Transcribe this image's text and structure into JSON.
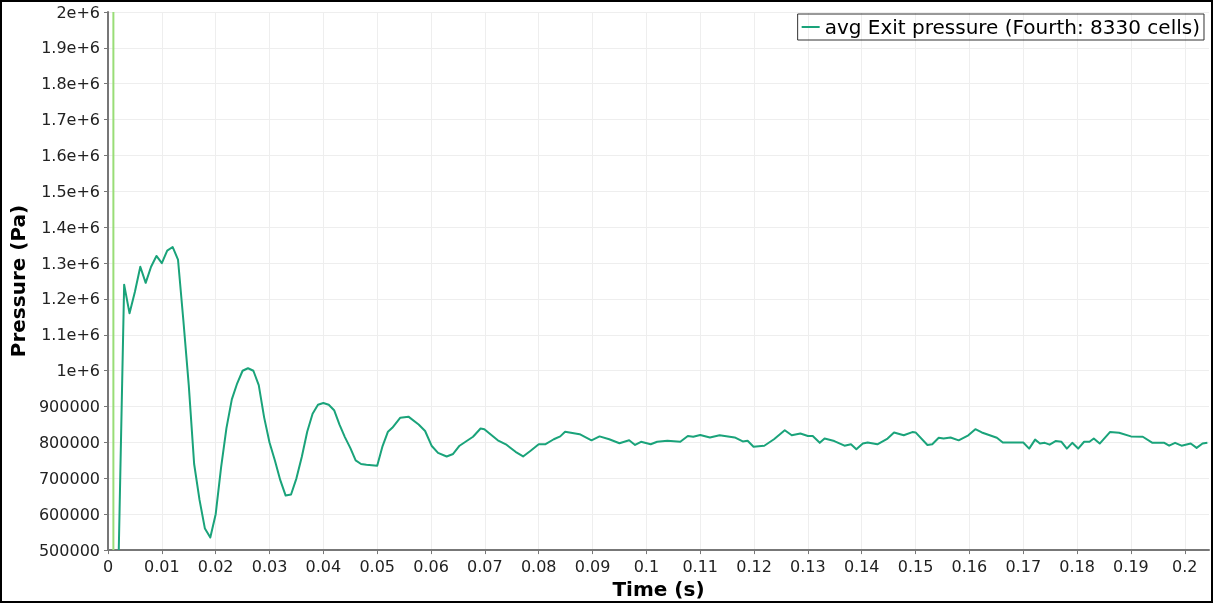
{
  "chart_data": {
    "type": "line",
    "xlabel": "Time (s)",
    "ylabel": "Pressure (Pa)",
    "xlim": [
      0,
      0.2045
    ],
    "ylim": [
      500000,
      2000000
    ],
    "xticks": [
      0,
      0.01,
      0.02,
      0.03,
      0.04,
      0.05,
      0.06,
      0.07,
      0.08,
      0.09,
      0.1,
      0.11,
      0.12,
      0.13,
      0.14,
      0.15,
      0.16,
      0.17,
      0.18,
      0.19,
      0.2
    ],
    "yticks": [
      500000,
      600000,
      700000,
      800000,
      900000,
      {
        "value": 1000000,
        "label": "1e+6"
      },
      {
        "value": 1100000,
        "label": "1.1e+6"
      },
      {
        "value": 1200000,
        "label": "1.2e+6"
      },
      {
        "value": 1300000,
        "label": "1.3e+6"
      },
      {
        "value": 1400000,
        "label": "1.4e+6"
      },
      {
        "value": 1500000,
        "label": "1.5e+6"
      },
      {
        "value": 1600000,
        "label": "1.6e+6"
      },
      {
        "value": 1700000,
        "label": "1.7e+6"
      },
      {
        "value": 1800000,
        "label": "1.8e+6"
      },
      {
        "value": 1900000,
        "label": "1.9e+6"
      },
      {
        "value": 2000000,
        "label": "2e+6"
      }
    ],
    "grid": true,
    "legend": "top right",
    "marker": "none",
    "line_style": "solid",
    "series": [
      {
        "name": "avg Exit pressure (Fourth: 8330 cells)",
        "color": "#1aa37a",
        "x": [
          0.002,
          0.003,
          0.004,
          0.005,
          0.006,
          0.007,
          0.008,
          0.009,
          0.01,
          0.011,
          0.012,
          0.013,
          0.014,
          0.015,
          0.016,
          0.017,
          0.018,
          0.019,
          0.02,
          0.021,
          0.022,
          0.023,
          0.024,
          0.025,
          0.026,
          0.027,
          0.028,
          0.029,
          0.03,
          0.031,
          0.032,
          0.033,
          0.034,
          0.035,
          0.036,
          0.037,
          0.038,
          0.039,
          0.04,
          0.041,
          0.042,
          0.043,
          0.044,
          0.045,
          0.046,
          0.047,
          0.048,
          0.05,
          0.051,
          0.052,
          0.0528,
          0.0543,
          0.0558,
          0.0577,
          0.0589,
          0.0601,
          0.0613,
          0.0629,
          0.0641,
          0.0653,
          0.0678,
          0.0692,
          0.0699,
          0.0724,
          0.0739,
          0.0757,
          0.0771,
          0.0785,
          0.08,
          0.0812,
          0.0828,
          0.084,
          0.0849,
          0.0876,
          0.0898,
          0.0913,
          0.0931,
          0.095,
          0.0968,
          0.0979,
          0.099,
          0.1008,
          0.102,
          0.1039,
          0.1063,
          0.1077,
          0.1087,
          0.11,
          0.1118,
          0.1136,
          0.1164,
          0.1179,
          0.1188,
          0.1199,
          0.1219,
          0.1237,
          0.1257,
          0.127,
          0.1286,
          0.13,
          0.1309,
          0.1322,
          0.1331,
          0.1349,
          0.1368,
          0.138,
          0.139,
          0.1402,
          0.1411,
          0.1429,
          0.1448,
          0.146,
          0.1478,
          0.1494,
          0.15,
          0.1522,
          0.1531,
          0.1543,
          0.1552,
          0.1565,
          0.158,
          0.1598,
          0.1611,
          0.1623,
          0.1651,
          0.1662,
          0.17,
          0.1711,
          0.1722,
          0.1731,
          0.174,
          0.1749,
          0.176,
          0.1771,
          0.1781,
          0.1791,
          0.1802,
          0.1813,
          0.1823,
          0.1831,
          0.1842,
          0.1861,
          0.1878,
          0.19,
          0.1922,
          0.194,
          0.1962,
          0.1971,
          0.1982,
          0.1994,
          0.2011,
          0.2022,
          0.2033,
          0.2042
        ],
        "values": [
          500000,
          1240000,
          1160000,
          1220000,
          1290000,
          1245000,
          1290000,
          1320000,
          1300000,
          1335000,
          1345000,
          1310000,
          1140000,
          960000,
          740000,
          640000,
          560000,
          535000,
          600000,
          730000,
          840000,
          920000,
          965000,
          1000000,
          1007000,
          1000000,
          960000,
          870000,
          800000,
          750000,
          695000,
          652000,
          655000,
          700000,
          760000,
          830000,
          880000,
          905000,
          910000,
          905000,
          890000,
          850000,
          815000,
          785000,
          750000,
          740000,
          738000,
          735000,
          790000,
          830000,
          841000,
          869000,
          872000,
          850000,
          832000,
          791000,
          771000,
          761000,
          768000,
          791000,
          816000,
          839000,
          837000,
          806000,
          795000,
          774000,
          761000,
          777000,
          795000,
          795000,
          809000,
          817000,
          830000,
          823000,
          806000,
          817000,
          809000,
          798000,
          806000,
          793000,
          802000,
          795000,
          802000,
          805000,
          802000,
          818000,
          816000,
          821000,
          814000,
          820000,
          814000,
          803000,
          805000,
          788000,
          791000,
          809000,
          834000,
          820000,
          825000,
          818000,
          818000,
          799000,
          811000,
          804000,
          791000,
          795000,
          781000,
          797000,
          800000,
          795000,
          811000,
          828000,
          820000,
          829000,
          828000,
          793000,
          795000,
          813000,
          811000,
          814000,
          806000,
          820000,
          837000,
          828000,
          813000,
          800000,
          800000,
          783000,
          808000,
          797000,
          799000,
          794000,
          804000,
          802000,
          783000,
          799000,
          783000,
          802000,
          802000,
          811000,
          797000,
          829000,
          827000,
          817000,
          816000,
          799000,
          799000,
          791000,
          799000,
          791000,
          797000,
          785000,
          797000,
          799000
        ]
      },
      {
        "color": "#99dd77",
        "x": [
          0.001,
          0.001
        ],
        "values": [
          500000,
          2000000
        ]
      }
    ]
  }
}
